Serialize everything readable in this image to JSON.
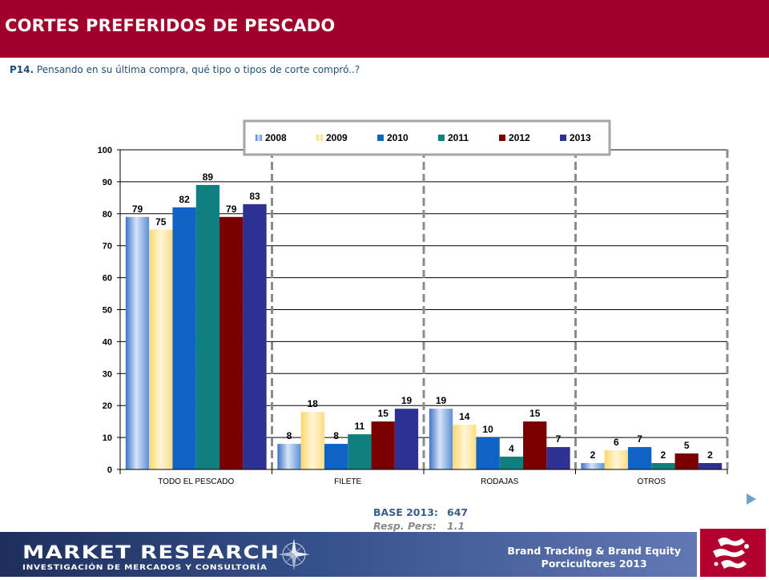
{
  "header": {
    "title": "CORTES PREFERIDOS DE PESCADO",
    "question_number": "P14.",
    "question_text": "Pensando en su última compra, qué tipo o tipos de corte compró..?"
  },
  "chart_data": {
    "type": "bar",
    "title": "",
    "xlabel": "",
    "ylabel": "",
    "ylim": [
      0,
      100
    ],
    "yticks": [
      "0",
      "10",
      "20",
      "30",
      "40",
      "50",
      "60",
      "70",
      "80",
      "90",
      "100"
    ],
    "grid": true,
    "legend_position": "top",
    "categories": [
      "TODO EL PESCADO",
      "FILETE",
      "RODAJAS",
      "OTROS"
    ],
    "series": [
      {
        "name": "2008",
        "values": [
          79,
          8,
          19,
          2
        ],
        "color": "#7fa6dc"
      },
      {
        "name": "2009",
        "values": [
          75,
          18,
          14,
          6
        ],
        "color": "#ffe08a"
      },
      {
        "name": "2010",
        "values": [
          82,
          8,
          10,
          7
        ],
        "color": "#0f63c4"
      },
      {
        "name": "2011",
        "values": [
          89,
          11,
          4,
          2
        ],
        "color": "#0f7f7f"
      },
      {
        "name": "2012",
        "values": [
          79,
          15,
          15,
          5
        ],
        "color": "#7a0000"
      },
      {
        "name": "2013",
        "values": [
          83,
          19,
          7,
          2
        ],
        "color": "#2e3192"
      }
    ]
  },
  "base": {
    "label": "BASE 2013:",
    "value": "647",
    "resp_label": "Resp. Pers:",
    "resp_value": "1.1"
  },
  "footer": {
    "logo_main": "MARKET RESEARCH",
    "logo_sub": "INVESTIGACIÓN DE MERCADOS Y CONSULTORÍA",
    "brand_line1": "Brand Tracking & Brand Equity",
    "brand_line2": "Porcicultores 2013"
  },
  "colors": {
    "header_band": "#a1002a",
    "accent_arrow": "#8fb8d8",
    "footer_band": "#34508a"
  },
  "icons": [
    "next-arrow-icon",
    "compass-rose-icon",
    "porcicultores-logo-icon"
  ]
}
